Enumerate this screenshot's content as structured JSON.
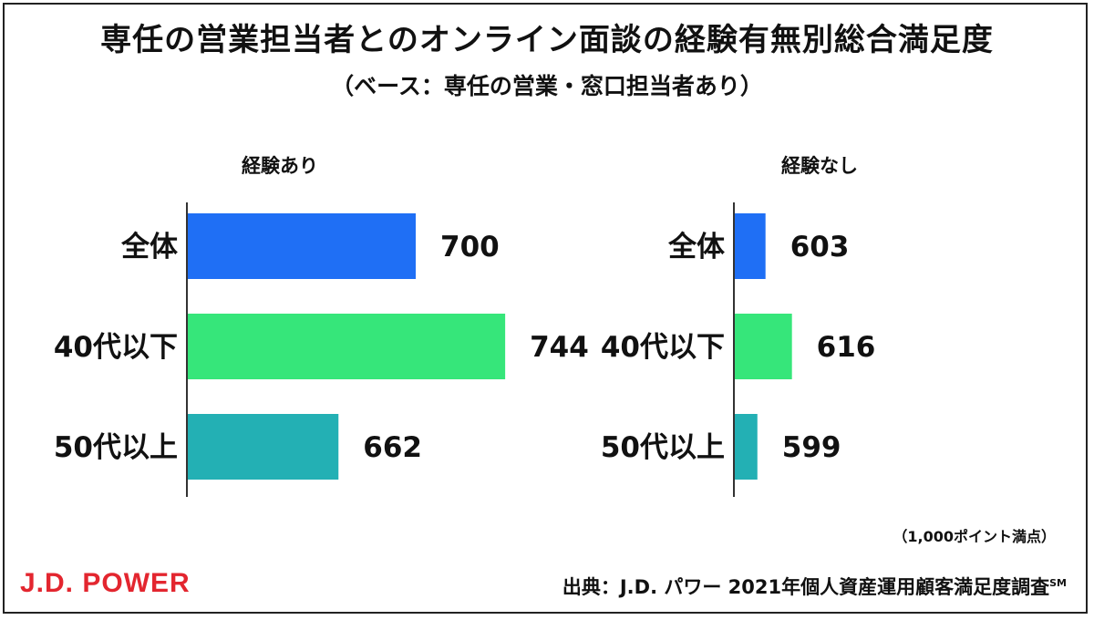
{
  "title": "専任の営業担当者とのオンライン面談の経験有無別総合満足度",
  "subtitle": "（ベース：専任の営業・窓口担当者あり）",
  "unit_note": "（1,000ポイント満点）",
  "brand_logo": "J.D. POWER",
  "source": "出典：J.D. パワー 2021年個人資産運用顧客満足度調査",
  "source_mark": "SM",
  "chart_data": [
    {
      "type": "bar",
      "orientation": "horizontal",
      "title": "経験あり",
      "categories": [
        "全体",
        "40代以下",
        "50代以上"
      ],
      "values": [
        700,
        744,
        662
      ],
      "colors": [
        "#1f6ff5",
        "#36e67a",
        "#23b0b4"
      ],
      "data_labels": true
    },
    {
      "type": "bar",
      "orientation": "horizontal",
      "title": "経験なし",
      "categories": [
        "全体",
        "40代以下",
        "50代以上"
      ],
      "values": [
        603,
        616,
        599
      ],
      "colors": [
        "#1f6ff5",
        "#36e67a",
        "#23b0b4"
      ],
      "data_labels": true
    }
  ]
}
